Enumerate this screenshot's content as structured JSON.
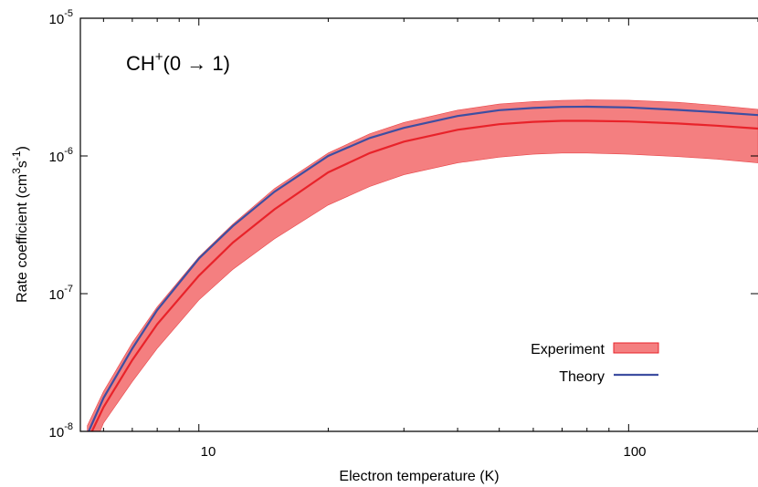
{
  "chart_data": {
    "type": "area",
    "xlabel": "Electron temperature (K)",
    "ylabel_main": "Rate coefficient (cm",
    "ylabel_sup1": "3",
    "ylabel_mid": "s",
    "ylabel_sup2": "-1",
    "ylabel_end": ")",
    "annotation": {
      "main": "CH",
      "sup": "+",
      "rest": "(0 → 1)"
    },
    "x_scale": "log",
    "y_scale": "log",
    "xlim": [
      5.3,
      200
    ],
    "ylim": [
      1e-08,
      1e-05
    ],
    "x_ticks": [
      {
        "value": 10,
        "label": "10"
      },
      {
        "value": 100,
        "label": "100"
      }
    ],
    "y_ticks": [
      {
        "value": 1e-08,
        "base": "10",
        "exp": "-8"
      },
      {
        "value": 1e-07,
        "base": "10",
        "exp": "-7"
      },
      {
        "value": 1e-06,
        "base": "10",
        "exp": "-6"
      },
      {
        "value": 1e-05,
        "base": "10",
        "exp": "-5"
      }
    ],
    "legend_position": "bottom-right",
    "legend": [
      {
        "label": "Experiment",
        "kind": "band"
      },
      {
        "label": "Theory",
        "kind": "line"
      }
    ],
    "colors": {
      "band": "#f47f80",
      "band_edge": "#e8474a",
      "experiment_line": "#e8232a",
      "theory_line": "#3e4ea1"
    },
    "series": [
      {
        "name": "Experiment",
        "kind": "band",
        "x": [
          5.5,
          6,
          7,
          8,
          10,
          12,
          15,
          20,
          25,
          30,
          40,
          50,
          60,
          70,
          80,
          100,
          130,
          160,
          200
        ],
        "lower": [
          5.9e-09,
          1.15e-08,
          2.3e-08,
          4e-08,
          9e-08,
          1.5e-07,
          2.5e-07,
          4.4e-07,
          6e-07,
          7.3e-07,
          8.9e-07,
          9.8e-07,
          1.03e-06,
          1.05e-06,
          1.05e-06,
          1.03e-06,
          9.9e-07,
          9.5e-07,
          8.9e-07
        ],
        "upper": [
          1.1e-08,
          1.95e-08,
          4.4e-08,
          8e-08,
          1.85e-07,
          3.2e-07,
          5.8e-07,
          1.05e-06,
          1.45e-06,
          1.75e-06,
          2.15e-06,
          2.38e-06,
          2.48e-06,
          2.53e-06,
          2.55e-06,
          2.54e-06,
          2.45e-06,
          2.33e-06,
          2.18e-06
        ]
      },
      {
        "name": "Experiment",
        "kind": "line",
        "x": [
          5.5,
          6,
          7,
          8,
          10,
          12,
          15,
          20,
          25,
          30,
          40,
          50,
          60,
          70,
          80,
          100,
          130,
          160,
          200
        ],
        "y": [
          8.5e-09,
          1.5e-08,
          3.3e-08,
          6e-08,
          1.35e-07,
          2.35e-07,
          4.1e-07,
          7.6e-07,
          1.05e-06,
          1.27e-06,
          1.55e-06,
          1.7e-06,
          1.77e-06,
          1.8e-06,
          1.8e-06,
          1.78e-06,
          1.72e-06,
          1.66e-06,
          1.58e-06
        ]
      },
      {
        "name": "Theory",
        "kind": "line",
        "x": [
          5.5,
          6,
          7,
          8,
          10,
          12,
          15,
          20,
          25,
          30,
          40,
          50,
          60,
          70,
          80,
          100,
          130,
          160,
          200
        ],
        "y": [
          9.5e-09,
          1.75e-08,
          4e-08,
          7.6e-08,
          1.8e-07,
          3.1e-07,
          5.5e-07,
          1e-06,
          1.35e-06,
          1.6e-06,
          1.95e-06,
          2.15e-06,
          2.23e-06,
          2.27e-06,
          2.28e-06,
          2.25e-06,
          2.16e-06,
          2.08e-06,
          1.98e-06
        ]
      }
    ]
  }
}
